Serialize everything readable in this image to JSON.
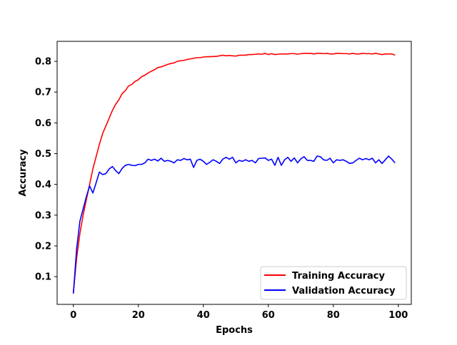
{
  "chart_data": {
    "type": "line",
    "title": "",
    "xlabel": "Epochs",
    "ylabel": "Accuracy",
    "xlim": [
      -5,
      104
    ],
    "ylim": [
      0.01,
      0.865
    ],
    "xticks": [
      0,
      20,
      40,
      60,
      80,
      100
    ],
    "yticks": [
      0.1,
      0.2,
      0.3,
      0.4,
      0.5,
      0.6,
      0.7,
      0.8
    ],
    "xtick_labels": [
      "0",
      "20",
      "40",
      "60",
      "80",
      "100"
    ],
    "ytick_labels": [
      "0.1",
      "0.2",
      "0.3",
      "0.4",
      "0.5",
      "0.6",
      "0.7",
      "0.8"
    ],
    "grid": false,
    "legend_position": "bottom-right",
    "x": [
      0,
      1,
      2,
      3,
      4,
      5,
      6,
      7,
      8,
      9,
      10,
      11,
      12,
      13,
      14,
      15,
      16,
      17,
      18,
      19,
      20,
      21,
      22,
      23,
      24,
      25,
      26,
      27,
      28,
      29,
      30,
      31,
      32,
      33,
      34,
      35,
      36,
      37,
      38,
      39,
      40,
      41,
      42,
      43,
      44,
      45,
      46,
      47,
      48,
      49,
      50,
      51,
      52,
      53,
      54,
      55,
      56,
      57,
      58,
      59,
      60,
      61,
      62,
      63,
      64,
      65,
      66,
      67,
      68,
      69,
      70,
      71,
      72,
      73,
      74,
      75,
      76,
      77,
      78,
      79,
      80,
      81,
      82,
      83,
      84,
      85,
      86,
      87,
      88,
      89,
      90,
      91,
      92,
      93,
      94,
      95,
      96,
      97,
      98,
      99
    ],
    "series": [
      {
        "name": "Training Accuracy",
        "color": "#ff0000",
        "values": [
          0.048,
          0.16,
          0.24,
          0.3,
          0.35,
          0.4,
          0.45,
          0.49,
          0.53,
          0.565,
          0.59,
          0.615,
          0.64,
          0.66,
          0.675,
          0.695,
          0.705,
          0.72,
          0.725,
          0.735,
          0.74,
          0.75,
          0.755,
          0.762,
          0.768,
          0.773,
          0.78,
          0.782,
          0.786,
          0.79,
          0.793,
          0.795,
          0.8,
          0.802,
          0.803,
          0.806,
          0.808,
          0.81,
          0.812,
          0.812,
          0.814,
          0.815,
          0.815,
          0.816,
          0.816,
          0.818,
          0.82,
          0.818,
          0.819,
          0.818,
          0.817,
          0.82,
          0.82,
          0.82,
          0.822,
          0.822,
          0.823,
          0.824,
          0.823,
          0.826,
          0.822,
          0.825,
          0.822,
          0.823,
          0.824,
          0.824,
          0.824,
          0.825,
          0.825,
          0.823,
          0.825,
          0.826,
          0.826,
          0.826,
          0.824,
          0.826,
          0.826,
          0.825,
          0.826,
          0.824,
          0.824,
          0.826,
          0.826,
          0.825,
          0.825,
          0.824,
          0.826,
          0.824,
          0.824,
          0.826,
          0.825,
          0.825,
          0.824,
          0.826,
          0.824,
          0.822,
          0.824,
          0.824,
          0.824,
          0.82
        ]
      },
      {
        "name": "Validation Accuracy",
        "color": "#0000ff",
        "values": [
          0.045,
          0.19,
          0.28,
          0.32,
          0.36,
          0.395,
          0.372,
          0.405,
          0.44,
          0.432,
          0.435,
          0.45,
          0.458,
          0.445,
          0.435,
          0.452,
          0.462,
          0.465,
          0.462,
          0.461,
          0.465,
          0.465,
          0.47,
          0.482,
          0.478,
          0.482,
          0.476,
          0.485,
          0.475,
          0.478,
          0.475,
          0.47,
          0.48,
          0.478,
          0.484,
          0.48,
          0.482,
          0.455,
          0.478,
          0.482,
          0.475,
          0.465,
          0.472,
          0.48,
          0.475,
          0.468,
          0.482,
          0.488,
          0.482,
          0.488,
          0.47,
          0.478,
          0.475,
          0.48,
          0.475,
          0.478,
          0.47,
          0.484,
          0.485,
          0.486,
          0.478,
          0.482,
          0.462,
          0.488,
          0.462,
          0.48,
          0.488,
          0.475,
          0.486,
          0.47,
          0.483,
          0.49,
          0.478,
          0.478,
          0.475,
          0.492,
          0.49,
          0.48,
          0.478,
          0.485,
          0.47,
          0.48,
          0.478,
          0.48,
          0.475,
          0.468,
          0.47,
          0.478,
          0.485,
          0.48,
          0.484,
          0.48,
          0.485,
          0.47,
          0.48,
          0.468,
          0.48,
          0.492,
          0.482,
          0.47
        ]
      }
    ]
  }
}
